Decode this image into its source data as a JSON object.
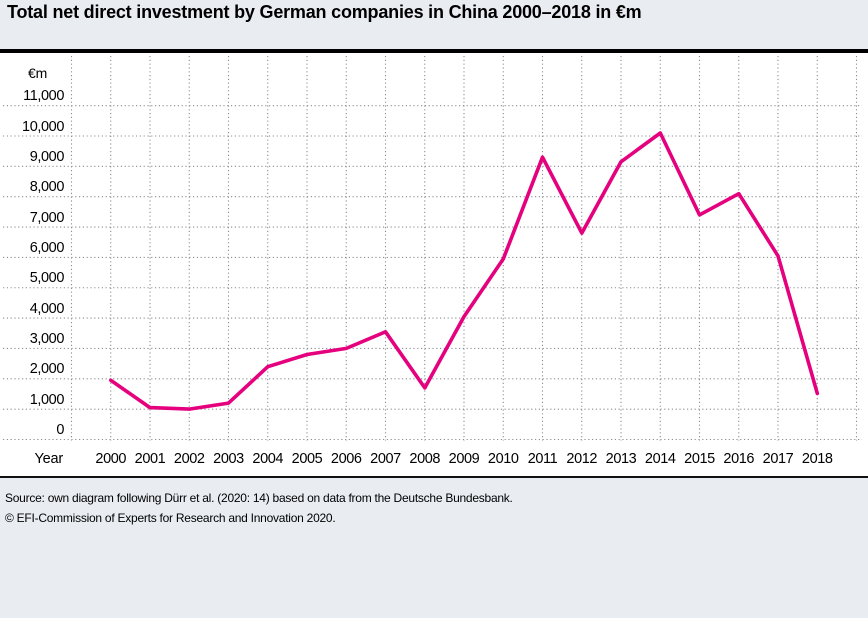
{
  "title": "Total net direct investment by German companies in China 2000–2018 in €m",
  "chart_data": {
    "type": "line",
    "title": "Total net direct investment by German companies in China 2000–2018 in €m",
    "unit_label": "€m",
    "xlabel": "Year",
    "ylabel": "€m",
    "x": [
      2000,
      2001,
      2002,
      2003,
      2004,
      2005,
      2006,
      2007,
      2008,
      2009,
      2010,
      2011,
      2012,
      2013,
      2014,
      2015,
      2016,
      2017,
      2018
    ],
    "values": [
      1950,
      1050,
      1000,
      1200,
      2400,
      2800,
      3000,
      3550,
      1700,
      4050,
      5950,
      9300,
      6800,
      9150,
      10100,
      7400,
      8100,
      6050,
      1520
    ],
    "ylim": [
      0,
      11000
    ],
    "ytick_step": 1000,
    "grid": "dotted",
    "legend": "none"
  },
  "colors": {
    "line": "#e5007d",
    "grid": "#8a8f94",
    "page_background": "#e9edf2",
    "panel_background": "#ffffff",
    "rule": "#000000"
  },
  "footer": {
    "source_line": "Source: own diagram following Dürr et al. (2020: 14) based on data from the Deutsche Bundesbank.",
    "copyright_line": "© EFI-Commission of Experts for Research and Innovation 2020."
  }
}
